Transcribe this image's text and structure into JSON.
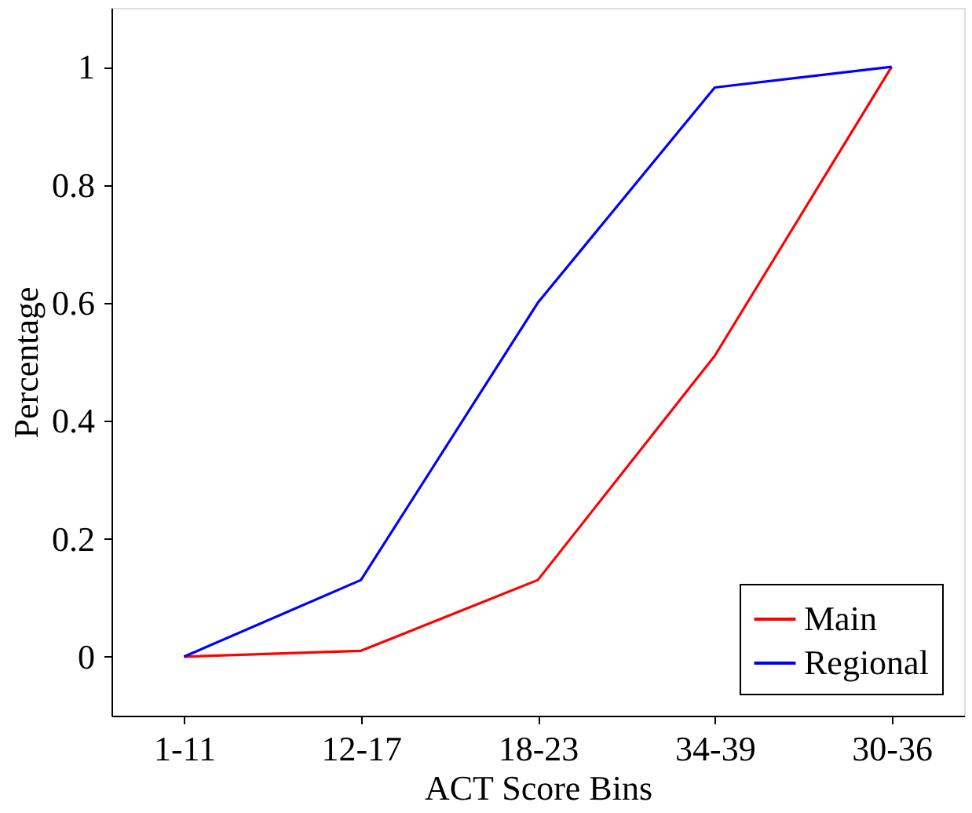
{
  "chart_data": {
    "type": "line",
    "xlabel": "ACT Score Bins",
    "ylabel": "Percentage",
    "categories": [
      "1-11",
      "12-17",
      "18-23",
      "34-39",
      "30-36"
    ],
    "series": [
      {
        "name": "Main",
        "color": "#ff0000",
        "values": [
          0,
          0.01,
          0.13,
          0.51,
          1
        ]
      },
      {
        "name": "Regional",
        "color": "#0000ff",
        "values": [
          0,
          0.13,
          0.6,
          0.965,
          1
        ]
      }
    ],
    "ylim": [
      -0.1,
      1.1
    ],
    "yticks": [
      0,
      0.2,
      0.4,
      0.6,
      0.8,
      1
    ],
    "grid": false,
    "legend": "bottom right",
    "marker": "none",
    "line_style": "solid"
  }
}
